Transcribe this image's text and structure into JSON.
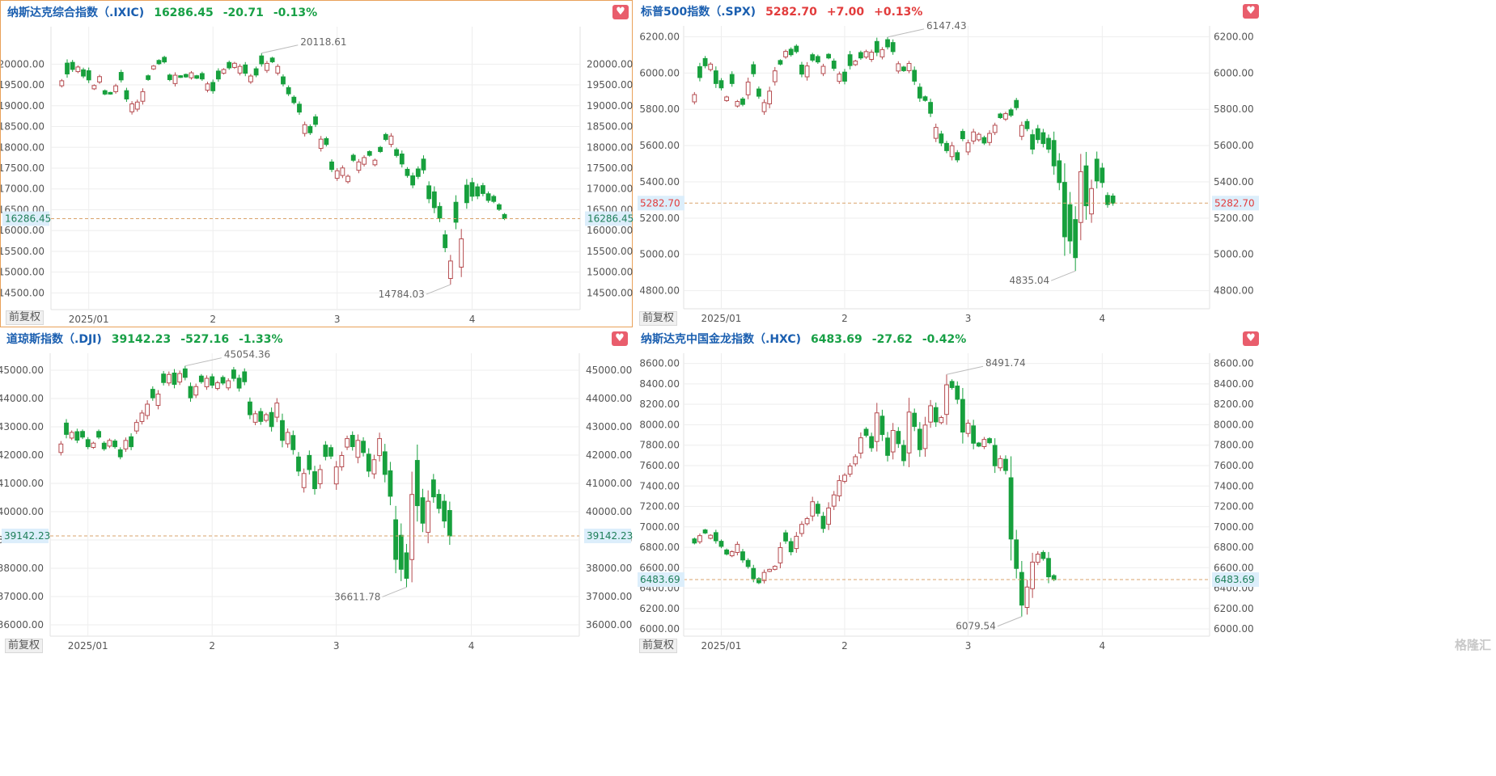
{
  "colors": {
    "up": "#b54b4f",
    "down": "#17a03d",
    "grid": "#eeeeee",
    "dash": "#d9a36b",
    "title": "#1b5fb0",
    "tag": "#dceefb",
    "pos": "#e23c3c",
    "neg": "#18a046"
  },
  "panels": [
    {
      "name": "纳斯达克综合指数（.IXIC)",
      "price": "16286.45",
      "change": "-20.71",
      "pct": "-0.13%",
      "dir": "down",
      "adj_label": "前复权",
      "active": true,
      "chart_data": {
        "type": "candlestick",
        "x_ticks": [
          "2025/01",
          "2",
          "3",
          "4"
        ],
        "x_tick_idx": [
          13,
          36,
          59,
          84
        ],
        "y_ticks": [
          "20000.00",
          "19500.00",
          "19000.00",
          "18500.00",
          "18000.00",
          "17500.00",
          "17000.00",
          "16500.00",
          "16000.00",
          "15500.00",
          "15000.00",
          "14500.00"
        ],
        "y_max": 20900,
        "y_min": 14100,
        "last": 16286.45,
        "last_label": "16286.45",
        "hi_label": "20118.61",
        "lo_label": "14784.03",
        "hi": 20118.61,
        "lo": 14784.03,
        "closes": [
          19600,
          19764,
          19872,
          19930,
          19713,
          19621,
          19486,
          19700,
          19281,
          19280,
          19478,
          19621,
          19162,
          19044,
          19088,
          19338,
          19630,
          19954,
          20009,
          20053,
          19627,
          19733,
          19681,
          19692,
          19791,
          19661,
          19643,
          19524,
          19359,
          19643,
          19871,
          19910,
          20020,
          19945,
          19780,
          19714,
          19738,
          20007,
          20018,
          20056,
          19945,
          19524,
          19286,
          19075,
          18847,
          18544,
          18350,
          18552,
          18196,
          18069,
          17468,
          17436,
          17504,
          17305,
          17689,
          17648,
          17754,
          17808,
          17691,
          17899,
          18189,
          18271,
          17804,
          17600,
          17322,
          17095,
          17300,
          17457,
          16765,
          16550,
          16300,
          15588,
          15268,
          16200,
          15800,
          16670,
          16823,
          16831,
          16890,
          16724,
          16700,
          16510,
          16286
        ],
        "swings": [
          120,
          -260,
          -170,
          110,
          -150,
          -220,
          80,
          130,
          -80,
          -40,
          140,
          -180,
          -200,
          190,
          170,
          230,
          -90,
          70,
          -80,
          -110,
          -110,
          200,
          -40,
          -60,
          120,
          -60,
          -130,
          150,
          -200,
          -190,
          90,
          -130,
          100,
          160,
          -200,
          140,
          -150,
          -190,
          170,
          -90,
          160,
          -170,
          -150,
          -130,
          -190,
          210,
          -150,
          -180,
          220,
          -140,
          -180,
          180,
          180,
          130,
          -120,
          200,
          160,
          -90,
          110,
          -100,
          -120,
          200,
          -140,
          -240,
          -150,
          -220,
          -180,
          -260,
          -310,
          -380,
          -280,
          -310,
          420,
          -480,
          680,
          -420,
          -330,
          -220,
          -190,
          -160,
          -120,
          -110,
          -100
        ]
      }
    },
    {
      "name": "标普500指数（.SPX)",
      "price": "5282.70",
      "change": "+7.00",
      "pct": "+0.13%",
      "dir": "up",
      "adj_label": "前复权",
      "active": false,
      "chart_data": {
        "type": "candlestick",
        "x_ticks": [
          "2025/01",
          "2",
          "3",
          "4"
        ],
        "x_tick_idx": [
          13,
          36,
          59,
          84
        ],
        "y_ticks": [
          "6200.00",
          "6000.00",
          "5800.00",
          "5600.00",
          "5400.00",
          "5200.00",
          "5000.00",
          "4800.00"
        ],
        "y_max": 6260,
        "y_min": 4700,
        "last": 5282.7,
        "last_label": "5282.70",
        "hi_label": "6147.43",
        "lo_label": "4835.04",
        "hi": 6147.43,
        "lo": 4835.04,
        "closes": [
          5881,
          5975,
          6040,
          6049,
          5942,
          5918,
          5868,
          5942,
          5843,
          5827,
          5950,
          5996,
          5872,
          5837,
          5900,
          6012,
          6049,
          6119,
          6101,
          6118,
          5994,
          6039,
          6071,
          6061,
          6037,
          6083,
          6026,
          5994,
          5955,
          6041,
          6066,
          6083,
          6118,
          6115,
          6114,
          6129,
          6144,
          6118,
          6051,
          6013,
          6053,
          5955,
          5862,
          5849,
          5778,
          5700,
          5614,
          5572,
          5599,
          5521,
          5638,
          5615,
          5675,
          5662,
          5614,
          5667,
          5712,
          5754,
          5776,
          5767,
          5809,
          5711,
          5693,
          5580,
          5633,
          5611,
          5580,
          5488,
          5396,
          5097,
          5074,
          4982,
          5456,
          5268,
          5363,
          5405,
          5396,
          5275,
          5282
        ],
        "swings": [
          40,
          -60,
          -40,
          30,
          -70,
          -40,
          20,
          -50,
          25,
          -30,
          70,
          -50,
          -40,
          50,
          70,
          60,
          -20,
          30,
          -30,
          -30,
          -50,
          60,
          -30,
          -30,
          40,
          -20,
          -40,
          40,
          -50,
          -60,
          20,
          -30,
          30,
          40,
          -60,
          40,
          -40,
          -50,
          40,
          -20,
          40,
          -60,
          -60,
          -20,
          -60,
          60,
          -50,
          -40,
          60,
          -40,
          -40,
          50,
          50,
          30,
          -30,
          50,
          40,
          -20,
          30,
          -30,
          -40,
          60,
          -40,
          -80,
          -60,
          -60,
          -60,
          -140,
          -120,
          -300,
          -200,
          -210,
          280,
          -220,
          140,
          -120,
          -80,
          -50,
          -40
        ]
      }
    },
    {
      "name": "道琼斯指数（.DJI)",
      "price": "39142.23",
      "change": "-527.16",
      "pct": "-1.33%",
      "dir": "down",
      "adj_label": "前复权",
      "active": false,
      "chart_data": {
        "type": "candlestick",
        "x_ticks": [
          "2025/01",
          "2",
          "3",
          "4"
        ],
        "x_tick_idx": [
          13,
          36,
          59,
          84
        ],
        "y_ticks": [
          "45000.00",
          "44000.00",
          "43000.00",
          "42000.00",
          "41000.00",
          "40000.00",
          "39000.00",
          "38000.00",
          "37000.00",
          "36000.00"
        ],
        "y_max": 45600,
        "y_min": 35600,
        "last": 39142.23,
        "last_label": "39142.23",
        "hi_label": "45054.36",
        "lo_label": "36611.78",
        "hi": 45054.36,
        "lo": 36611.78,
        "closes": [
          42392,
          42732,
          42802,
          42528,
          42636,
          42297,
          42422,
          42635,
          42221,
          42518,
          42297,
          41938,
          42518,
          42297,
          43153,
          43487,
          43800,
          44025,
          44157,
          44565,
          44850,
          44500,
          44882,
          44747,
          44025,
          44422,
          44593,
          44713,
          44470,
          44556,
          44546,
          44627,
          44711,
          44368,
          44593,
          43428,
          43461,
          43191,
          43428,
          43007,
          43840,
          42520,
          42801,
          42192,
          41433,
          41350,
          41488,
          40813,
          41488,
          41953,
          41964,
          41581,
          41985,
          42583,
          42299,
          42520,
          42091,
          41433,
          41837,
          42583,
          41317,
          40545,
          38314,
          37965,
          37645,
          40608,
          40212,
          39593,
          40368,
          40524,
          40113,
          39669,
          39142
        ],
        "swings": [
          300,
          -400,
          200,
          -300,
          -200,
          -250,
          150,
          -200,
          -200,
          200,
          -200,
          -250,
          300,
          -350,
          300,
          300,
          400,
          -300,
          400,
          -300,
          300,
          -400,
          300,
          -300,
          -400,
          300,
          -200,
          300,
          -300,
          200,
          -200,
          250,
          -300,
          -350,
          -350,
          -450,
          300,
          -350,
          200,
          -500,
          500,
          -700,
          400,
          -500,
          -500,
          500,
          -500,
          -600,
          500,
          -400,
          -300,
          600,
          400,
          300,
          -400,
          600,
          -400,
          -600,
          500,
          600,
          -800,
          -900,
          -1400,
          -1200,
          -900,
          2300,
          -1600,
          -900,
          1100,
          -600,
          -500,
          -700,
          -900
        ]
      }
    },
    {
      "name": "纳斯达克中国金龙指数（.HXC)",
      "price": "6483.69",
      "change": "-27.62",
      "pct": "-0.42%",
      "dir": "down",
      "adj_label": "前复权",
      "active": false,
      "chart_data": {
        "type": "candlestick",
        "x_ticks": [
          "2025/01",
          "2",
          "3",
          "4"
        ],
        "x_tick_idx": [
          13,
          36,
          59,
          84
        ],
        "y_ticks": [
          "8600.00",
          "8400.00",
          "8200.00",
          "8000.00",
          "7800.00",
          "7600.00",
          "7400.00",
          "7200.00",
          "7000.00",
          "6800.00",
          "6600.00",
          "6400.00",
          "6200.00",
          "6000.00"
        ],
        "y_max": 8700,
        "y_min": 5930,
        "last": 6483.69,
        "last_label": "6483.69",
        "hi_label": "8491.74",
        "lo_label": "6079.54",
        "hi": 8491.74,
        "lo": 6079.54,
        "closes": [
          6842,
          6914,
          6940,
          6918,
          6864,
          6809,
          6734,
          6757,
          6829,
          6676,
          6612,
          6493,
          6453,
          6554,
          6584,
          6614,
          6797,
          6862,
          6756,
          6908,
          7025,
          7081,
          7246,
          7132,
          6984,
          7185,
          7313,
          7453,
          7506,
          7596,
          7687,
          7872,
          7896,
          7774,
          8116,
          7904,
          7700,
          7944,
          7815,
          7648,
          8124,
          7983,
          7756,
          7997,
          8186,
          8028,
          8071,
          8391,
          8364,
          8249,
          7928,
          8015,
          7819,
          7791,
          7856,
          7824,
          7598,
          7668,
          7552,
          6881,
          6593,
          6234,
          6411,
          6655,
          6733,
          6690,
          6511,
          6483
        ],
        "swings": [
          -40,
          60,
          -30,
          30,
          -80,
          -50,
          -40,
          40,
          80,
          -80,
          -60,
          -100,
          -40,
          80,
          20,
          30,
          150,
          -80,
          -100,
          120,
          90,
          50,
          140,
          -90,
          -120,
          160,
          110,
          150,
          60,
          80,
          70,
          150,
          -60,
          -110,
          280,
          -180,
          -170,
          210,
          -120,
          -150,
          400,
          -130,
          -200,
          230,
          160,
          -140,
          50,
          290,
          -60,
          -130,
          -320,
          100,
          -170,
          -30,
          70,
          -40,
          -200,
          90,
          -110,
          -600,
          -280,
          -320,
          200,
          260,
          80,
          -60,
          -180,
          -40
        ]
      }
    }
  ],
  "watermark": "格隆汇"
}
